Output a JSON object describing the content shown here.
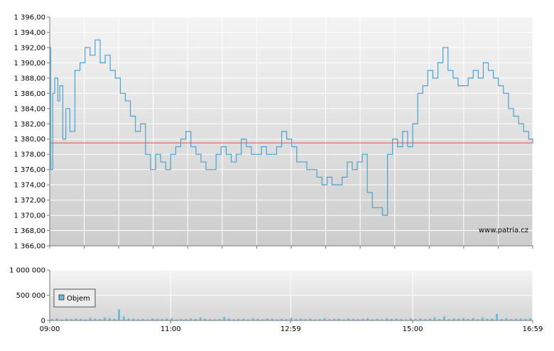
{
  "watermark": "www.patria.cz",
  "colors": {
    "line": "#4aa3cf",
    "reference": "#e05050",
    "volume": "#6ab7dc",
    "grid": "#ffffff",
    "axis": "#777777"
  },
  "chart_data": [
    {
      "type": "line",
      "title": "",
      "ylim": [
        1366,
        1396
      ],
      "y_ticks": [
        "1 396,00",
        "1 394,00",
        "1 392,00",
        "1 390,00",
        "1 388,00",
        "1 386,00",
        "1 384,00",
        "1 382,00",
        "1 380,00",
        "1 378,00",
        "1 376,00",
        "1 374,00",
        "1 372,00",
        "1 370,00",
        "1 368,00",
        "1 366,00"
      ],
      "reference_value": 1379.5,
      "series": [
        {
          "x": [
            "09:00",
            "09:01",
            "09:03",
            "09:05",
            "09:08",
            "09:10",
            "09:13",
            "09:16",
            "09:20",
            "09:25",
            "09:30",
            "09:35",
            "09:40",
            "09:45",
            "09:50",
            "09:55",
            "10:00",
            "10:05",
            "10:10",
            "10:15",
            "10:20",
            "10:25",
            "10:30",
            "10:35",
            "10:40",
            "10:45",
            "10:50",
            "10:55",
            "11:00",
            "11:05",
            "11:10",
            "11:15",
            "11:20",
            "11:25",
            "11:30",
            "11:35",
            "11:40",
            "11:45",
            "11:50",
            "11:55",
            "12:00",
            "12:05",
            "12:10",
            "12:15",
            "12:20",
            "12:25",
            "12:30",
            "12:35",
            "12:40",
            "12:45",
            "12:50",
            "12:55",
            "13:00",
            "13:05",
            "13:10",
            "13:15",
            "13:20",
            "13:25",
            "13:30",
            "13:35",
            "13:40",
            "13:45",
            "13:50",
            "13:55",
            "14:00",
            "14:05",
            "14:10",
            "14:15",
            "14:20",
            "14:25",
            "14:30",
            "14:35",
            "14:40",
            "14:45",
            "14:50",
            "14:55",
            "15:00",
            "15:05",
            "15:10",
            "15:15",
            "15:20",
            "15:25",
            "15:30",
            "15:35",
            "15:40",
            "15:45",
            "15:50",
            "15:55",
            "16:00",
            "16:05",
            "16:10",
            "16:15",
            "16:20",
            "16:25",
            "16:30",
            "16:35",
            "16:40",
            "16:45",
            "16:50",
            "16:55",
            "16:59"
          ],
          "values": [
            1392,
            1376,
            1386,
            1388,
            1385,
            1387,
            1380,
            1384,
            1381,
            1389,
            1390,
            1392,
            1391,
            1393,
            1390,
            1391,
            1389,
            1388,
            1386,
            1385,
            1383,
            1381,
            1382,
            1378,
            1376,
            1378,
            1377,
            1376,
            1378,
            1379,
            1380,
            1381,
            1379,
            1378,
            1377,
            1376,
            1376,
            1378,
            1379,
            1378,
            1377,
            1378,
            1380,
            1379,
            1378,
            1378,
            1379,
            1378,
            1378,
            1379,
            1381,
            1380,
            1379,
            1377,
            1377,
            1376,
            1376,
            1375,
            1374,
            1375,
            1374,
            1374,
            1375,
            1377,
            1376,
            1377,
            1378,
            1373,
            1371,
            1371,
            1370,
            1378,
            1380,
            1379,
            1381,
            1379,
            1382,
            1386,
            1387,
            1389,
            1388,
            1390,
            1392,
            1389,
            1388,
            1387,
            1387,
            1388,
            1389,
            1388,
            1390,
            1389,
            1388,
            1387,
            1386,
            1384,
            1383,
            1382,
            1381,
            1380,
            1379.5
          ],
          "name": ""
        }
      ]
    },
    {
      "type": "bar",
      "title": "",
      "ylim": [
        0,
        1000000
      ],
      "y_ticks": [
        "1 000 000",
        "500 000",
        "0"
      ],
      "x_ticks": [
        "09:00",
        "11:00",
        "12:59",
        "15:00",
        "16:59"
      ],
      "legend": {
        "label": "Objem",
        "placement": "top-left"
      },
      "series": [
        {
          "name": "Objem",
          "values": [
            30000,
            45000,
            20000,
            35000,
            25000,
            40000,
            30000,
            20000,
            50000,
            35000,
            25000,
            60000,
            45000,
            30000,
            220000,
            80000,
            40000,
            35000,
            25000,
            30000,
            20000,
            40000,
            30000,
            25000,
            35000,
            45000,
            20000,
            30000,
            25000,
            40000,
            30000,
            60000,
            35000,
            25000,
            20000,
            30000,
            70000,
            40000,
            25000,
            30000,
            35000,
            20000,
            45000,
            30000,
            25000,
            40000,
            35000,
            20000,
            30000,
            25000,
            50000,
            30000,
            40000,
            25000,
            35000,
            20000,
            30000,
            45000,
            25000,
            30000,
            35000,
            20000,
            40000,
            30000,
            25000,
            35000,
            45000,
            20000,
            30000,
            25000,
            40000,
            30000,
            35000,
            25000,
            20000,
            45000,
            30000,
            40000,
            25000,
            35000,
            60000,
            30000,
            80000,
            25000,
            40000,
            35000,
            50000,
            30000,
            45000,
            25000,
            60000,
            35000,
            40000,
            130000,
            30000,
            45000,
            25000,
            35000,
            40000,
            30000,
            50000
          ]
        }
      ]
    }
  ]
}
